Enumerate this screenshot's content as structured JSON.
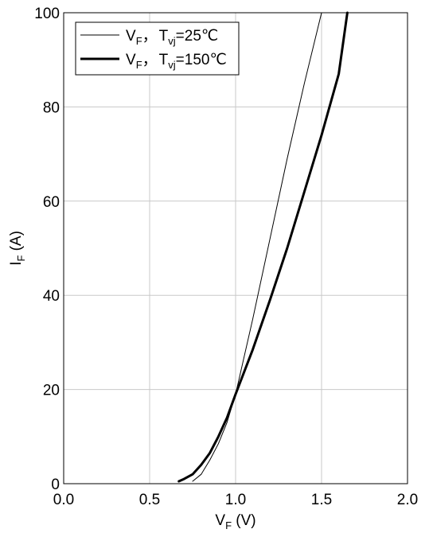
{
  "chart_data": {
    "type": "line",
    "title": "",
    "xlabel": {
      "main": "V",
      "sub": "F",
      "unit": " (V)"
    },
    "ylabel": {
      "main": "I",
      "sub": "F",
      "unit": " (A)"
    },
    "xlim": [
      0.0,
      2.0
    ],
    "ylim": [
      0,
      100
    ],
    "xticks": [
      "0.0",
      "0.5",
      "1.0",
      "1.5",
      "2.0"
    ],
    "yticks": [
      "0",
      "20",
      "40",
      "60",
      "80",
      "100"
    ],
    "xtick_values": [
      0.0,
      0.5,
      1.0,
      1.5,
      2.0
    ],
    "ytick_values": [
      0,
      20,
      40,
      60,
      80,
      100
    ],
    "grid": true,
    "legend_position": "top-left",
    "series": [
      {
        "name": "V_F, T_vj=25℃",
        "legend": {
          "v": "V",
          "vsub": "F",
          "sep": "，",
          "t": "T",
          "tsub": "vj",
          "rest": "=25℃"
        },
        "line_weight": "thin",
        "color": "#000000",
        "x": [
          0.75,
          0.8,
          0.85,
          0.9,
          0.95,
          1.0,
          1.05,
          1.1,
          1.2,
          1.3,
          1.4,
          1.5
        ],
        "y": [
          0.5,
          2,
          5,
          8.5,
          13,
          19,
          27,
          35,
          52,
          69,
          85,
          100
        ]
      },
      {
        "name": "V_F, T_vj=150℃",
        "legend": {
          "v": "V",
          "vsub": "F",
          "sep": "，",
          "t": "T",
          "tsub": "vj",
          "rest": "=150℃"
        },
        "line_weight": "thick",
        "color": "#000000",
        "x": [
          0.67,
          0.7,
          0.75,
          0.8,
          0.85,
          0.9,
          0.95,
          1.0,
          1.1,
          1.2,
          1.3,
          1.4,
          1.5,
          1.6,
          1.65
        ],
        "y": [
          0.5,
          1,
          2,
          4,
          6.5,
          10,
          14,
          19,
          28.5,
          39,
          50,
          62,
          74,
          87,
          100
        ]
      }
    ]
  }
}
